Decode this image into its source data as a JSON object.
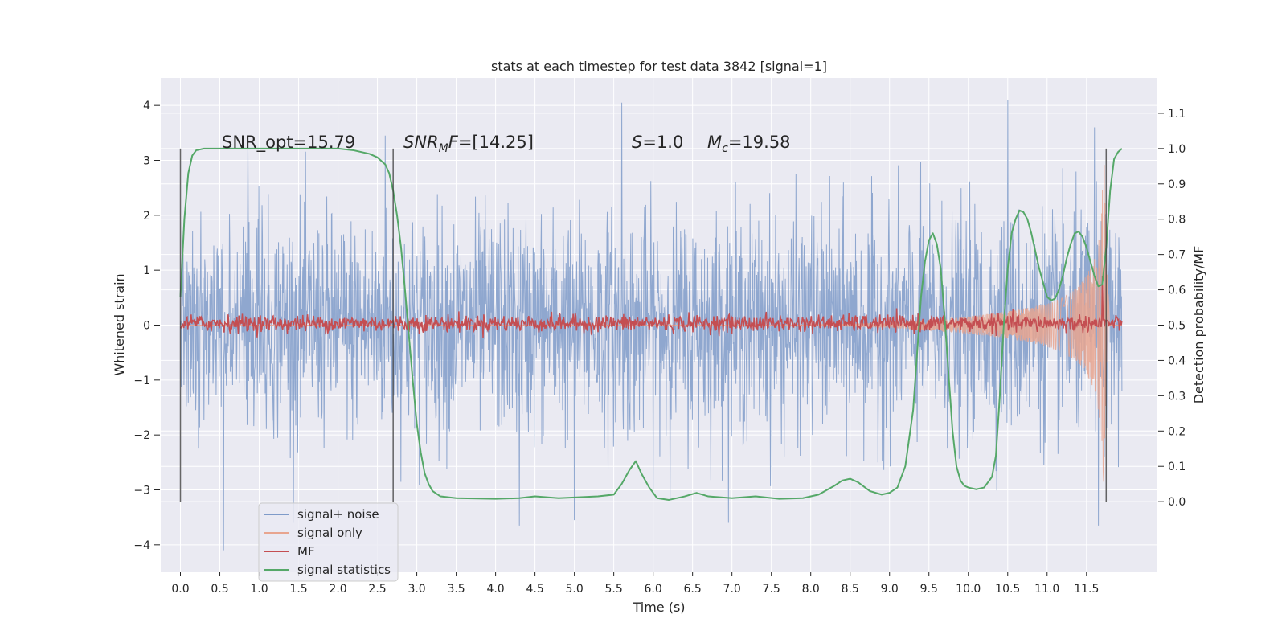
{
  "chart_data": {
    "type": "line",
    "title": "stats at each timestep for test data 3842 [signal=1]",
    "xlabel": "Time (s)",
    "ylabel": "Whitened strain",
    "y2label": "Detection probability/MF",
    "xlim": [
      -0.25,
      12.4
    ],
    "ylim": [
      -4.5,
      4.5
    ],
    "y2lim": [
      -0.2,
      1.2
    ],
    "grid": true,
    "legend_position": "lower-left",
    "x_ticks": [
      0.0,
      0.5,
      1.0,
      1.5,
      2.0,
      2.5,
      3.0,
      3.5,
      4.0,
      4.5,
      5.0,
      5.5,
      6.0,
      6.5,
      7.0,
      7.5,
      8.0,
      8.5,
      9.0,
      9.5,
      10.0,
      10.5,
      11.0,
      11.5
    ],
    "x_tick_labels": [
      "0.0",
      "0.5",
      "1.0",
      "1.5",
      "2.0",
      "2.5",
      "3.0",
      "3.5",
      "4.0",
      "4.5",
      "5.0",
      "5.5",
      "6.0",
      "6.5",
      "7.0",
      "7.5",
      "8.0",
      "8.5",
      "9.0",
      "9.5",
      "10.0",
      "10.5",
      "11.0",
      "11.5"
    ],
    "y_ticks": [
      -4,
      -3,
      -2,
      -1,
      0,
      1,
      2,
      3,
      4
    ],
    "y_tick_labels": [
      "−4",
      "−3",
      "−2",
      "−1",
      "0",
      "1",
      "2",
      "3",
      "4"
    ],
    "y2_ticks": [
      0.0,
      0.1,
      0.2,
      0.3,
      0.4,
      0.5,
      0.6,
      0.7,
      0.8,
      0.9,
      1.0,
      1.1
    ],
    "y2_tick_labels": [
      "0.0",
      "0.1",
      "0.2",
      "0.3",
      "0.4",
      "0.5",
      "0.6",
      "0.7",
      "0.8",
      "0.9",
      "1.0",
      "1.1"
    ],
    "annotations": [
      "SNR_opt=15.79",
      "SNR_MF=[14.25]",
      "S=1.0",
      "M_c=19.58"
    ],
    "vertical_markers": [
      0.0,
      2.7,
      11.75
    ],
    "series": [
      {
        "name": "signal+ noise",
        "color": "#7f9bc9",
        "axis": "left",
        "x_range": [
          0.0,
          11.95
        ],
        "noise_sigma": 1.0,
        "notable_peaks": [
          [
            5.6,
            4.05
          ],
          [
            10.5,
            4.1
          ],
          [
            11.6,
            3.6
          ],
          [
            2.6,
            3.45
          ],
          [
            0.55,
            -4.1
          ],
          [
            4.3,
            -3.65
          ],
          [
            5.0,
            -3.55
          ],
          [
            11.65,
            -3.65
          ]
        ]
      },
      {
        "name": "signal only",
        "color": "#e8a58f",
        "axis": "left",
        "x_range": [
          0.0,
          11.95
        ],
        "envelope": {
          "x": [
            8.0,
            9.0,
            9.5,
            10.0,
            10.5,
            10.8,
            11.0,
            11.2,
            11.4,
            11.5,
            11.6,
            11.65,
            11.7,
            11.73,
            11.76,
            11.8
          ],
          "amp": [
            0.01,
            0.05,
            0.1,
            0.16,
            0.25,
            0.33,
            0.4,
            0.5,
            0.7,
            0.9,
            1.2,
            1.6,
            2.4,
            3.2,
            1.0,
            0.0
          ]
        }
      },
      {
        "name": "MF",
        "color": "#c44e52",
        "axis": "right",
        "x_range": [
          0.0,
          11.95
        ],
        "baseline": 0.505,
        "noise_amplitude": 0.012,
        "spike": [
          11.7,
          0.64
        ]
      },
      {
        "name": "signal statistics",
        "color": "#55a868",
        "axis": "right",
        "x": [
          0.0,
          0.05,
          0.1,
          0.15,
          0.2,
          0.3,
          0.5,
          1.0,
          1.5,
          2.0,
          2.2,
          2.4,
          2.5,
          2.6,
          2.65,
          2.7,
          2.75,
          2.8,
          2.85,
          2.9,
          2.95,
          3.0,
          3.05,
          3.1,
          3.15,
          3.2,
          3.3,
          3.5,
          4.0,
          4.3,
          4.5,
          4.8,
          5.0,
          5.3,
          5.5,
          5.6,
          5.7,
          5.78,
          5.85,
          5.95,
          6.05,
          6.2,
          6.4,
          6.55,
          6.7,
          7.0,
          7.3,
          7.6,
          7.9,
          8.1,
          8.3,
          8.4,
          8.5,
          8.6,
          8.75,
          8.9,
          9.0,
          9.1,
          9.2,
          9.3,
          9.35,
          9.4,
          9.45,
          9.5,
          9.55,
          9.6,
          9.65,
          9.7,
          9.75,
          9.8,
          9.85,
          9.9,
          9.95,
          10.0,
          10.1,
          10.2,
          10.3,
          10.35,
          10.4,
          10.45,
          10.5,
          10.55,
          10.6,
          10.65,
          10.7,
          10.75,
          10.8,
          10.85,
          10.9,
          10.95,
          11.0,
          11.05,
          11.1,
          11.15,
          11.2,
          11.25,
          11.3,
          11.35,
          11.4,
          11.45,
          11.5,
          11.55,
          11.6,
          11.65,
          11.7,
          11.75,
          11.8,
          11.85,
          11.9,
          11.95
        ],
        "values": [
          0.58,
          0.8,
          0.93,
          0.98,
          0.995,
          1.0,
          1.0,
          1.0,
          1.0,
          1.0,
          0.995,
          0.985,
          0.975,
          0.955,
          0.93,
          0.88,
          0.81,
          0.72,
          0.6,
          0.47,
          0.34,
          0.22,
          0.14,
          0.08,
          0.05,
          0.03,
          0.015,
          0.01,
          0.008,
          0.01,
          0.015,
          0.01,
          0.012,
          0.015,
          0.02,
          0.05,
          0.09,
          0.115,
          0.08,
          0.04,
          0.01,
          0.005,
          0.015,
          0.025,
          0.015,
          0.01,
          0.015,
          0.008,
          0.01,
          0.02,
          0.045,
          0.06,
          0.065,
          0.055,
          0.03,
          0.02,
          0.025,
          0.04,
          0.1,
          0.26,
          0.42,
          0.58,
          0.68,
          0.74,
          0.76,
          0.73,
          0.66,
          0.52,
          0.36,
          0.2,
          0.1,
          0.06,
          0.045,
          0.04,
          0.035,
          0.04,
          0.07,
          0.13,
          0.3,
          0.5,
          0.66,
          0.76,
          0.8,
          0.825,
          0.82,
          0.8,
          0.76,
          0.71,
          0.66,
          0.62,
          0.58,
          0.57,
          0.575,
          0.6,
          0.64,
          0.69,
          0.73,
          0.76,
          0.765,
          0.75,
          0.72,
          0.68,
          0.64,
          0.61,
          0.615,
          0.72,
          0.88,
          0.97,
          0.99,
          1.0
        ]
      }
    ]
  }
}
